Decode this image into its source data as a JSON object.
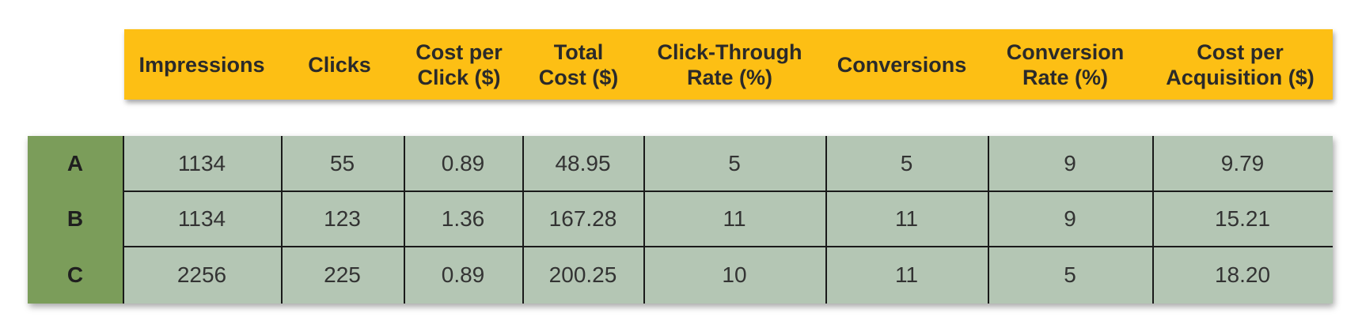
{
  "chart_data": {
    "type": "table",
    "columns": [
      "Impressions",
      "Clicks",
      "Cost per\nClick ($)",
      "Total\nCost ($)",
      "Click-Through\nRate (%)",
      "Conversions",
      "Conversion\nRate (%)",
      "Cost per\nAcquisition ($)"
    ],
    "rows": [
      {
        "label": "A",
        "cells": [
          "1134",
          "55",
          "0.89",
          "48.95",
          "5",
          "5",
          "9",
          "9.79"
        ]
      },
      {
        "label": "B",
        "cells": [
          "1134",
          "123",
          "1.36",
          "167.28",
          "11",
          "11",
          "9",
          "15.21"
        ]
      },
      {
        "label": "C",
        "cells": [
          "2256",
          "225",
          "0.89",
          "200.25",
          "10",
          "11",
          "5",
          "18.20"
        ]
      }
    ]
  }
}
